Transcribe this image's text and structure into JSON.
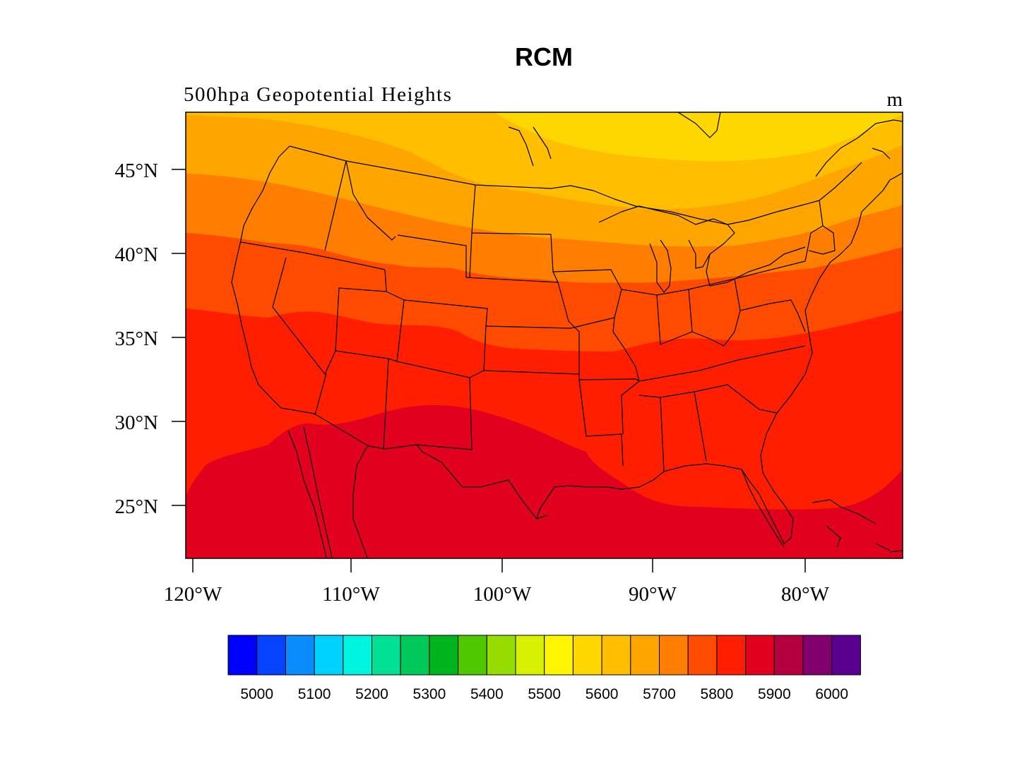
{
  "title": "RCM",
  "left_string": "500hpa Geopotential Heights",
  "units": "m",
  "map": {
    "lat_ticks": [
      "45°N",
      "40°N",
      "35°N",
      "30°N",
      "25°N"
    ],
    "lon_ticks": [
      "120°W",
      "110°W",
      "100°W",
      "90°W",
      "80°W"
    ]
  },
  "colorbar": {
    "colors": [
      "#0000ff",
      "#0543ff",
      "#0a8cff",
      "#00d2ff",
      "#00f5e1",
      "#00e196",
      "#00c85a",
      "#00b41e",
      "#50c800",
      "#96dc00",
      "#d7f000",
      "#fff500",
      "#ffd700",
      "#ffbe00",
      "#ffa500",
      "#ff7d00",
      "#ff4b00",
      "#ff1e00",
      "#e1001e",
      "#b40041",
      "#82006e",
      "#5a0090"
    ],
    "labels": [
      "5000",
      "5100",
      "5200",
      "5300",
      "5400",
      "5500",
      "5600",
      "5700",
      "5800",
      "5900",
      "6000"
    ]
  },
  "legend_colors": {
    "level_5600": "#ffd700",
    "level_5650": "#ffbe00",
    "level_5700": "#ffa500",
    "level_5750": "#ff7d00",
    "level_5800": "#ff4b00",
    "level_5850": "#ff1e00",
    "level_5900": "#e1001e"
  }
}
